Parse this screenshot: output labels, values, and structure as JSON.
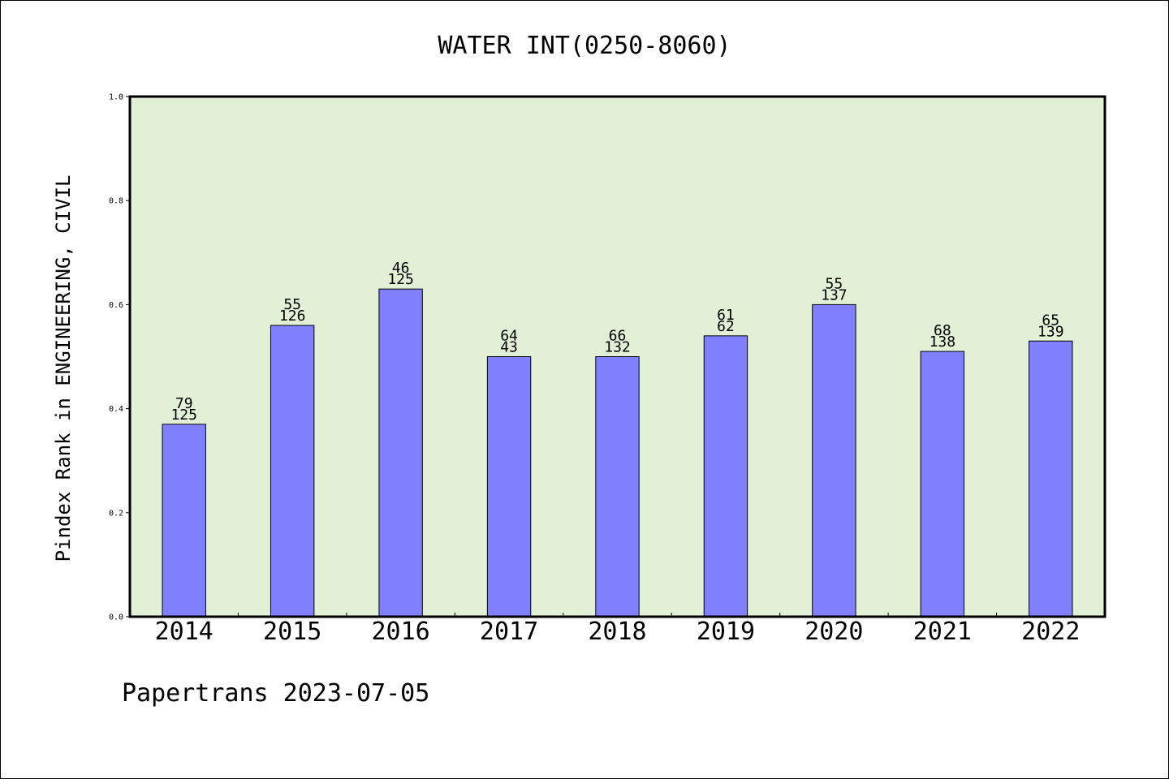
{
  "chart_data": {
    "type": "bar",
    "title": "WATER INT(0250-8060)",
    "xlabel": "",
    "ylabel": "Pindex Rank in ENGINEERING, CIVIL",
    "categories": [
      "2014",
      "2015",
      "2016",
      "2017",
      "2018",
      "2019",
      "2020",
      "2021",
      "2022"
    ],
    "values": [
      0.37,
      0.56,
      0.63,
      0.5,
      0.5,
      0.54,
      0.6,
      0.51,
      0.53
    ],
    "labels_top": [
      "79",
      "55",
      "46",
      "64",
      "66",
      "61",
      "55",
      "68",
      "65"
    ],
    "labels_bottom": [
      "125",
      "126",
      "125",
      "43",
      "132",
      "62",
      "137",
      "138",
      "139"
    ],
    "ylim": [
      0,
      1.0
    ],
    "yticks": [
      "0.0",
      "0.2",
      "0.4",
      "0.6",
      "0.8",
      "1.0"
    ],
    "grid": false,
    "colors": {
      "bar": "#8080ff",
      "plot_background": "#e2f0d6",
      "axis": "#000000"
    }
  },
  "footer": "Papertrans 2023-07-05"
}
